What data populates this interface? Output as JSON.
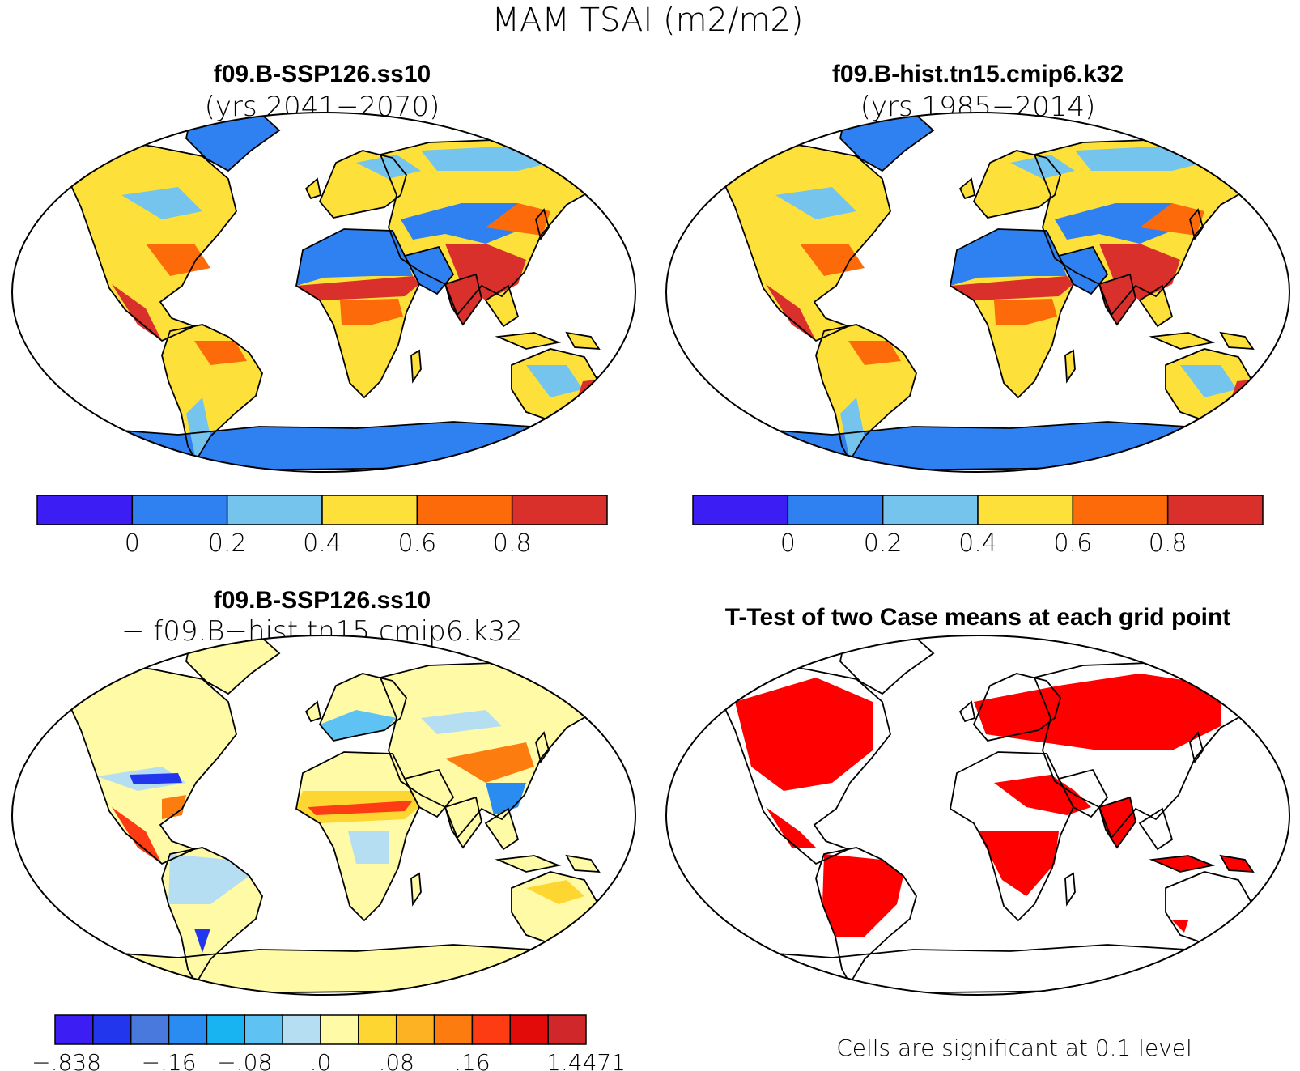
{
  "figure": {
    "title": "MAM TSAI (m2/m2)"
  },
  "panels": [
    {
      "case": "f09.B-SSP126.ss10",
      "years": "(yrs 2041−2070)",
      "kind": "field"
    },
    {
      "case": "f09.B-hist.tn15.cmip6.k32",
      "years": "(yrs 1985−2014)",
      "kind": "field"
    },
    {
      "case": "f09.B-SSP126.ss10",
      "years": "− f09.B−hist.tn15.cmip6.k32",
      "kind": "difference"
    },
    {
      "case": "T-Test of two Case means at each grid point",
      "years": "",
      "kind": "ttest"
    }
  ],
  "colorbar_field": {
    "colors": [
      "#3c1ef5",
      "#2f80f0",
      "#74c4ee",
      "#fde13a",
      "#fd6a0a",
      "#d9302c"
    ],
    "tick_labels": [
      "0",
      "0.2",
      "0.4",
      "0.6",
      "0.8"
    ]
  },
  "colorbar_diff": {
    "colors": [
      "#3c1ef5",
      "#2236ee",
      "#4a79dd",
      "#2a8cf0",
      "#18b4f2",
      "#5ec3f2",
      "#b6def3",
      "#fffaa6",
      "#fed632",
      "#fdb224",
      "#fd7c10",
      "#fd3c14",
      "#e30a0a",
      "#d0272a"
    ],
    "tick_labels": [
      ".838",
      ".16",
      ".08",
      ".0",
      ".08",
      ".16",
      "1.4471"
    ],
    "tick_signs": [
      "−",
      "−",
      "−",
      "",
      "",
      "",
      ""
    ]
  },
  "significance_note": "Cells are significant at 0.1 level",
  "colors": {
    "land_high": "#fde13a",
    "land_mid": "#fd6a0a",
    "land_max": "#d9302c",
    "desert": "#2f80f0",
    "boreal": "#74c4ee",
    "diff_base": "#fffaa6",
    "ttest_sig": "#ff0000"
  }
}
